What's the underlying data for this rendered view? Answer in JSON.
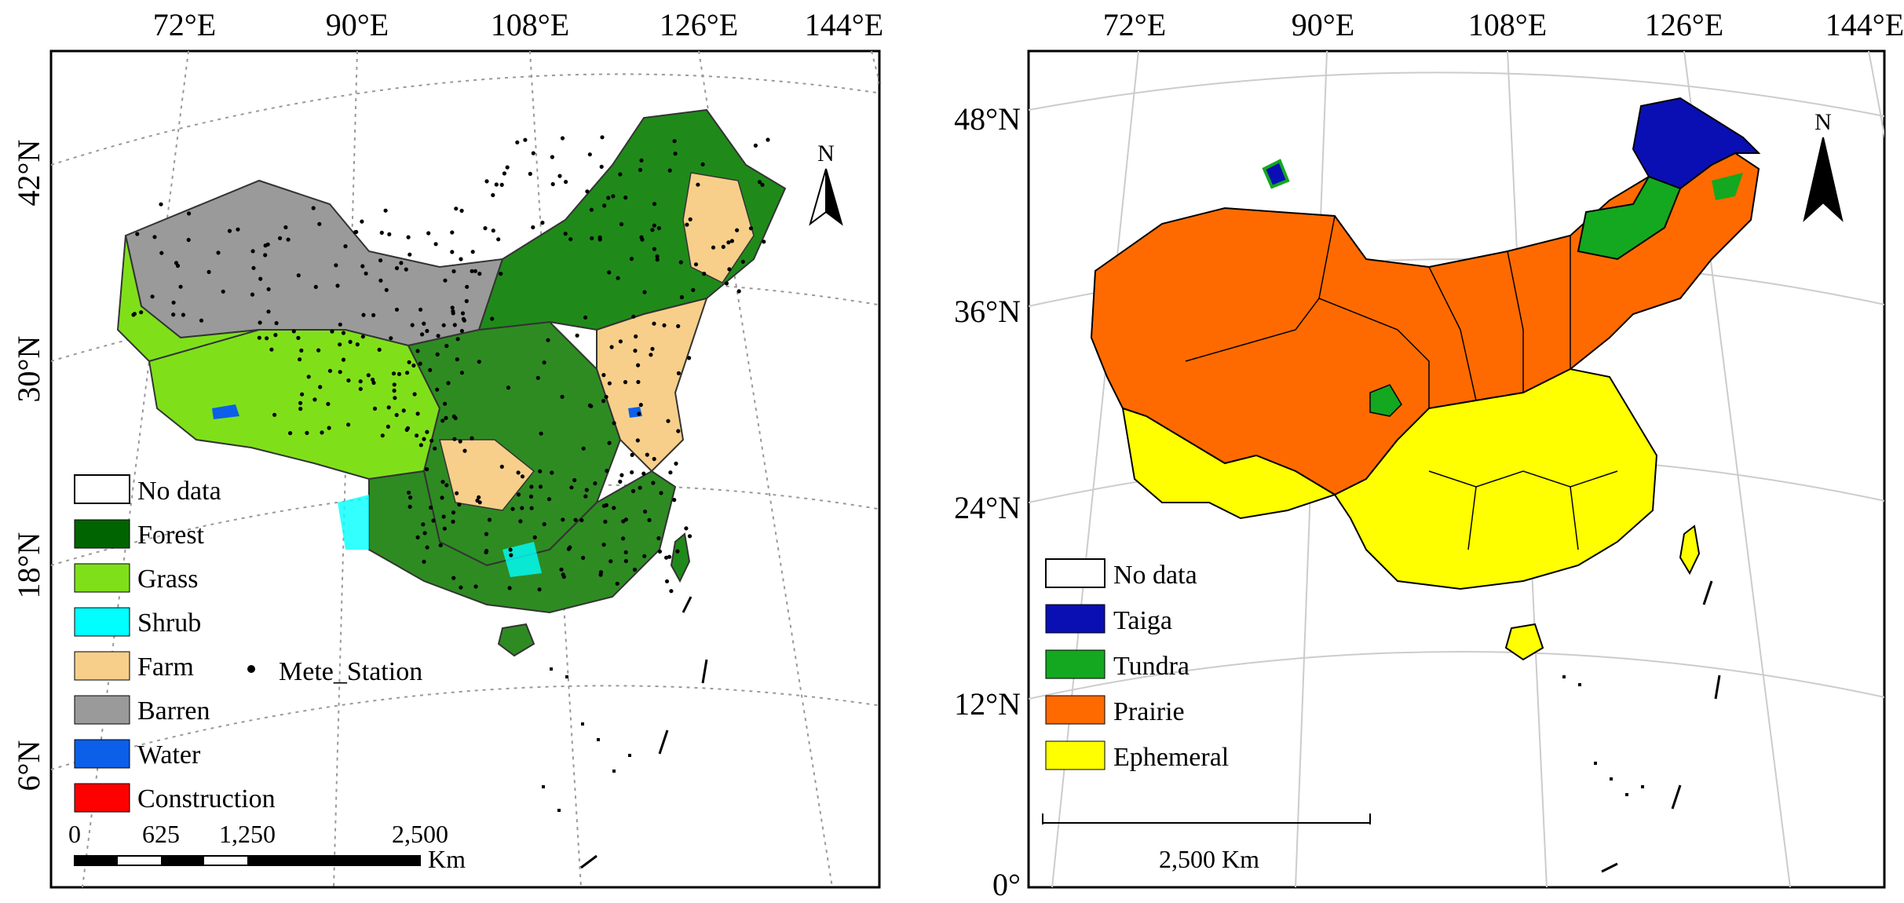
{
  "left_map": {
    "top_labels": [
      "72°E",
      "90°E",
      "108°E",
      "126°E",
      "144°E"
    ],
    "left_labels": [
      "42°N",
      "30°N",
      "18°N",
      "6°N"
    ],
    "north_label": "N",
    "legend": [
      {
        "label": "No data",
        "color": "#ffffff"
      },
      {
        "label": "Forest",
        "color": "#006400"
      },
      {
        "label": "Grass",
        "color": "#7fe01a"
      },
      {
        "label": "Shrub",
        "color": "#00ffff"
      },
      {
        "label": "Farm",
        "color": "#f7cf8a"
      },
      {
        "label": "Barren",
        "color": "#9a9a9a"
      },
      {
        "label": "Water",
        "color": "#0b5fe8"
      },
      {
        "label": "Construction",
        "color": "#ff0000"
      }
    ],
    "station_label": "Mete_Station",
    "scale_labels": [
      "0",
      "625",
      "1,250",
      "2,500"
    ],
    "scale_unit": "Km"
  },
  "right_map": {
    "top_labels": [
      "72°E",
      "90°E",
      "108°E",
      "126°E",
      "144°E"
    ],
    "left_labels": [
      "48°N",
      "36°N",
      "24°N",
      "12°N",
      "0°"
    ],
    "north_label": "N",
    "legend": [
      {
        "label": "No data",
        "color": "#ffffff"
      },
      {
        "label": "Taiga",
        "color": "#0a0fb4"
      },
      {
        "label": "Tundra",
        "color": "#13a81f"
      },
      {
        "label": "Prairie",
        "color": "#ff6a00"
      },
      {
        "label": "Ephemeral",
        "color": "#ffff00"
      }
    ],
    "scale_label": "2,500 Km"
  }
}
